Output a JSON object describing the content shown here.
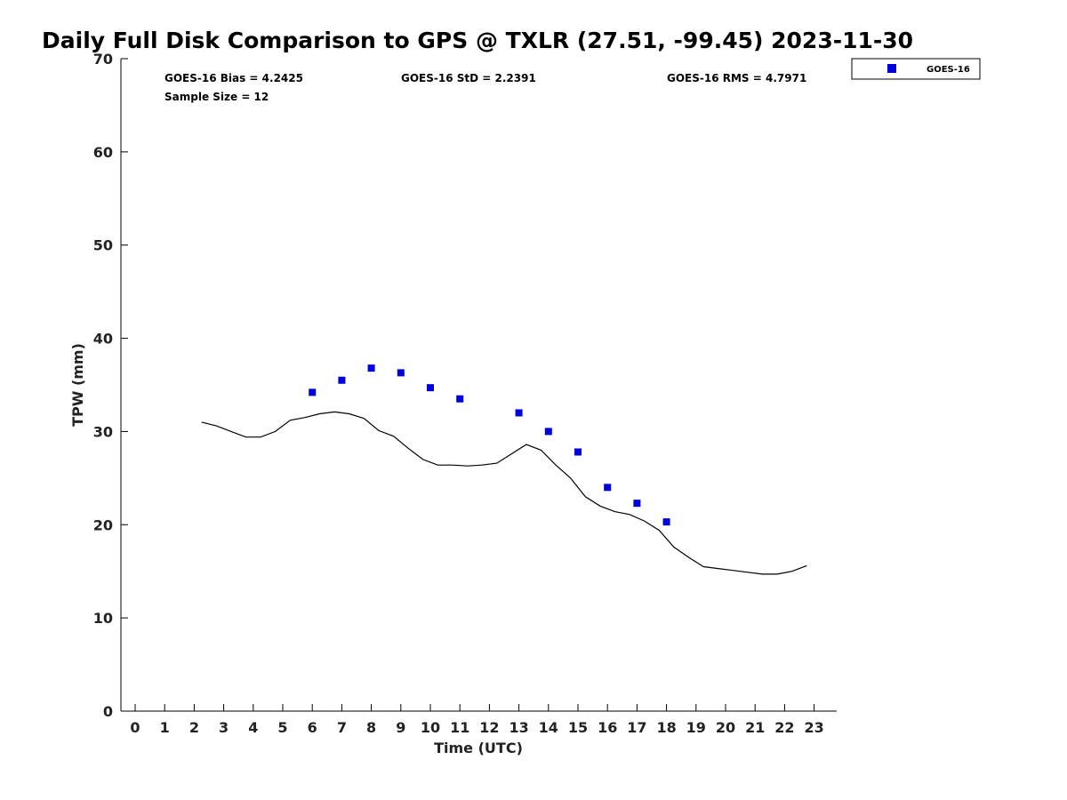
{
  "chart_data": {
    "type": "scatter",
    "title": "Daily Full Disk Comparison to GPS @ TXLR (27.51, -99.45) 2023-11-30",
    "xlabel": "Time (UTC)",
    "ylabel": "TPW (mm)",
    "xlim": [
      -0.5,
      23.8
    ],
    "ylim": [
      0,
      70
    ],
    "xticks": [
      "0",
      "1",
      "2",
      "3",
      "4",
      "5",
      "6",
      "7",
      "8",
      "9",
      "10",
      "11",
      "12",
      "13",
      "14",
      "15",
      "16",
      "17",
      "18",
      "19",
      "20",
      "21",
      "22",
      "23"
    ],
    "yticks": [
      "0",
      "10",
      "20",
      "30",
      "40",
      "50",
      "60",
      "70"
    ],
    "grid": false,
    "legend_position": "top-right",
    "stats": {
      "bias": "GOES-16 Bias = 4.2425",
      "std": "GOES-16 StD = 2.2391",
      "rms": "GOES-16 RMS = 4.7971",
      "sample": "Sample Size = 12"
    },
    "series": [
      {
        "name": "GOES-16",
        "kind": "scatter",
        "color": "#0000dd",
        "marker": "square",
        "x": [
          6,
          7,
          8,
          9,
          10,
          11,
          13,
          14,
          15,
          16,
          17,
          18
        ],
        "y": [
          34.2,
          35.5,
          36.8,
          36.3,
          34.7,
          33.5,
          32.0,
          30.0,
          27.8,
          24.0,
          22.3,
          20.3
        ]
      },
      {
        "kind": "line",
        "color": "#000000",
        "x": [
          2.25,
          2.75,
          3.25,
          3.75,
          4.25,
          4.75,
          5.25,
          5.75,
          6.25,
          6.75,
          7.25,
          7.75,
          8.25,
          8.75,
          9.25,
          9.75,
          10.25,
          10.75,
          11.25,
          11.75,
          12.25,
          12.75,
          13.25,
          13.75,
          14.25,
          14.75,
          15.25,
          15.75,
          16.25,
          16.75,
          17.25,
          17.75,
          18.25,
          18.75,
          19.25,
          19.75,
          20.25,
          20.75,
          21.25,
          21.75,
          22.25,
          22.75
        ],
        "y": [
          31.0,
          30.6,
          30.0,
          29.4,
          29.4,
          30.0,
          31.2,
          31.5,
          31.9,
          32.1,
          31.9,
          31.4,
          30.1,
          29.5,
          28.2,
          27.0,
          26.4,
          26.4,
          26.3,
          26.4,
          26.6,
          27.6,
          28.6,
          28.0,
          26.4,
          25.0,
          23.0,
          22.0,
          21.4,
          21.1,
          20.4,
          19.4,
          17.6,
          16.5,
          15.5,
          15.3,
          15.1,
          14.9,
          14.7,
          14.7,
          15.0,
          15.6
        ]
      }
    ]
  }
}
